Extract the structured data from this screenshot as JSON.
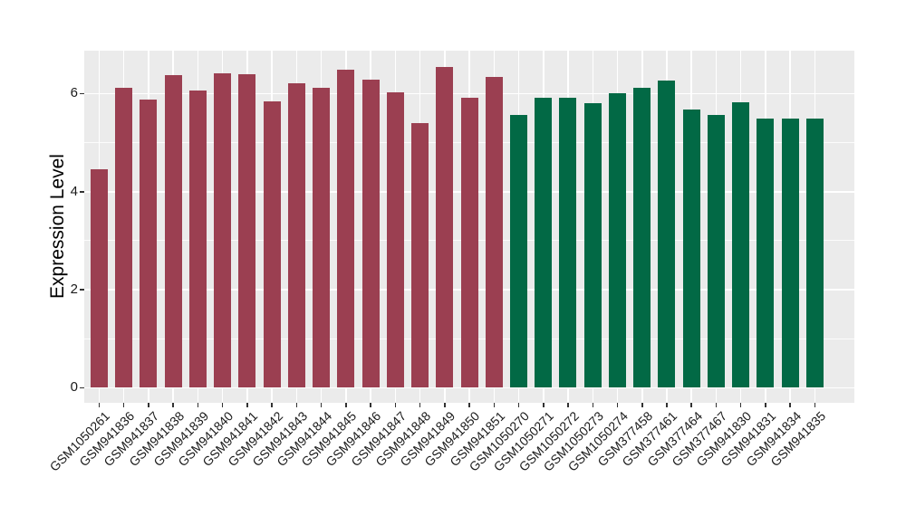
{
  "chart_data": {
    "type": "bar",
    "title": "",
    "xlabel": "",
    "ylabel": "Expression Level",
    "categories": [
      "GSM1050261",
      "GSM941836",
      "GSM941837",
      "GSM941838",
      "GSM941839",
      "GSM941840",
      "GSM941841",
      "GSM941842",
      "GSM941843",
      "GSM941844",
      "GSM941845",
      "GSM941846",
      "GSM941847",
      "GSM941848",
      "GSM941849",
      "GSM941850",
      "GSM941851",
      "GSM1050270",
      "GSM1050271",
      "GSM1050272",
      "GSM1050273",
      "GSM1050274",
      "GSM377458",
      "GSM377461",
      "GSM377464",
      "GSM377467",
      "GSM941830",
      "GSM941831",
      "GSM941834",
      "GSM941835"
    ],
    "values": [
      4.46,
      6.12,
      5.87,
      6.37,
      6.06,
      6.42,
      6.39,
      5.85,
      6.21,
      6.12,
      6.49,
      6.29,
      6.02,
      5.4,
      6.54,
      5.92,
      6.34,
      5.56,
      5.92,
      5.92,
      5.81,
      6.01,
      6.11,
      6.27,
      5.68,
      5.57,
      5.82,
      5.49,
      5.49,
      5.49
    ],
    "groups": [
      0,
      0,
      0,
      0,
      0,
      0,
      0,
      0,
      0,
      0,
      0,
      0,
      0,
      0,
      0,
      0,
      0,
      1,
      1,
      1,
      1,
      1,
      1,
      1,
      1,
      1,
      1,
      1,
      1,
      1
    ],
    "group_colors": [
      "#9B3F51",
      "#026945"
    ],
    "y_ticks": [
      0,
      2,
      4,
      6
    ],
    "y_tick_labels": [
      "0",
      "2",
      "4",
      "6"
    ],
    "y_minor_ticks": [
      1,
      3,
      5
    ],
    "ylim": [
      0,
      6.9
    ],
    "grid": true,
    "legend": false,
    "panel_bg": "#EBEBEB",
    "grid_color": "#FFFFFF",
    "tick_color": "#333333",
    "text_color": "#1A1A1A"
  }
}
